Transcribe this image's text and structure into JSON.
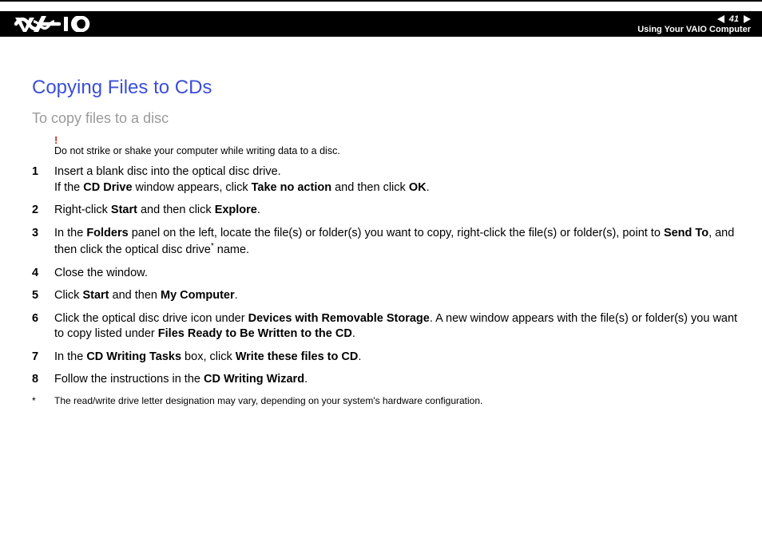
{
  "header": {
    "page_number": "41",
    "section": "Using Your VAIO Computer"
  },
  "title": "Copying Files to CDs",
  "subtitle": "To copy files to a disc",
  "warning": {
    "mark": "!",
    "text": "Do not strike or shake your computer while writing data to a disc."
  },
  "steps": [
    {
      "n": "1",
      "parts": [
        {
          "t": "Insert a blank disc into the optical disc drive."
        },
        {
          "br": true
        },
        {
          "t": "If the "
        },
        {
          "b": "CD Drive"
        },
        {
          "t": " window appears, click "
        },
        {
          "b": "Take no action"
        },
        {
          "t": " and then click "
        },
        {
          "b": "OK"
        },
        {
          "t": "."
        }
      ]
    },
    {
      "n": "2",
      "parts": [
        {
          "t": "Right-click "
        },
        {
          "b": "Start"
        },
        {
          "t": " and then click "
        },
        {
          "b": "Explore"
        },
        {
          "t": "."
        }
      ]
    },
    {
      "n": "3",
      "parts": [
        {
          "t": "In the "
        },
        {
          "b": "Folders"
        },
        {
          "t": " panel on the left, locate the file(s) or folder(s) you want to copy, right-click the file(s) or folder(s), point to "
        },
        {
          "b": "Send To"
        },
        {
          "t": ", and then click the optical disc drive"
        },
        {
          "sup": "*"
        },
        {
          "t": " name."
        }
      ]
    },
    {
      "n": "4",
      "parts": [
        {
          "t": "Close the window."
        }
      ]
    },
    {
      "n": "5",
      "parts": [
        {
          "t": "Click "
        },
        {
          "b": "Start"
        },
        {
          "t": " and then "
        },
        {
          "b": "My Computer"
        },
        {
          "t": "."
        }
      ]
    },
    {
      "n": "6",
      "parts": [
        {
          "t": "Click the optical disc drive icon under "
        },
        {
          "b": "Devices with Removable Storage"
        },
        {
          "t": ". A new window appears with the file(s) or folder(s) you want to copy listed under "
        },
        {
          "b": "Files Ready to Be Written to the CD"
        },
        {
          "t": "."
        }
      ]
    },
    {
      "n": "7",
      "parts": [
        {
          "t": "In the "
        },
        {
          "b": "CD Writing Tasks"
        },
        {
          "t": " box, click "
        },
        {
          "b": "Write these files to CD"
        },
        {
          "t": "."
        }
      ]
    },
    {
      "n": "8",
      "parts": [
        {
          "t": "Follow the instructions in the "
        },
        {
          "b": "CD Writing Wizard"
        },
        {
          "t": "."
        }
      ]
    }
  ],
  "footnote": {
    "mark": "*",
    "text": "The read/write drive letter designation may vary, depending on your system's hardware configuration."
  }
}
